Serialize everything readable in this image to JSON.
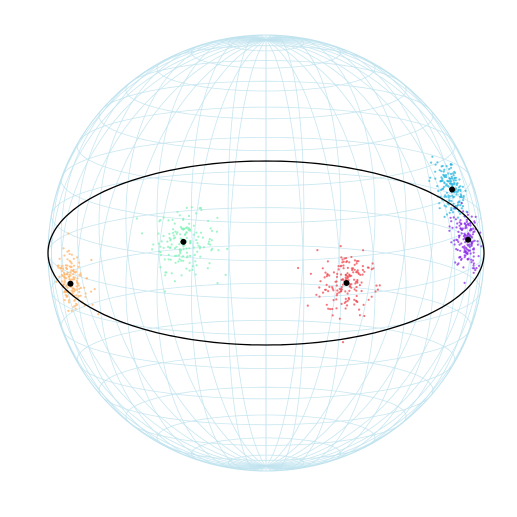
{
  "figure": {
    "type": "sphere-wireframe-scatter",
    "wireframe_color": "#bfe3ee",
    "great_circle_color": "#000000",
    "anchor_color": "#000000"
  },
  "clusters": [
    {
      "name": "cyan",
      "color": "#2bb7e0",
      "anchor": {
        "lon_deg": 67,
        "lat_deg": 22
      }
    },
    {
      "name": "green",
      "color": "#7ff2b6",
      "anchor": {
        "lon_deg": -23,
        "lat_deg": 14
      }
    },
    {
      "name": "orange",
      "color": "#ffb56b",
      "anchor": {
        "lon_deg": -113,
        "lat_deg": -13
      }
    },
    {
      "name": "red",
      "color": "#f0474f",
      "anchor": {
        "lon_deg": 157,
        "lat_deg": -19
      }
    },
    {
      "name": "purple",
      "color": "#8c2be8",
      "anchor": {
        "lon_deg": 112,
        "lat_deg": -1
      }
    }
  ]
}
